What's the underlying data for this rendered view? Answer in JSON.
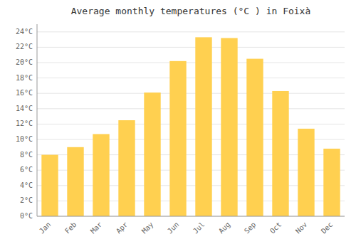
{
  "chart_data": {
    "type": "bar",
    "title": "Average monthly temperatures (°C ) in Foixà",
    "categories": [
      "Jan",
      "Feb",
      "Mar",
      "Apr",
      "May",
      "Jun",
      "Jul",
      "Aug",
      "Sep",
      "Oct",
      "Nov",
      "Dec"
    ],
    "values": [
      8.0,
      9.0,
      10.7,
      12.5,
      16.1,
      20.2,
      23.3,
      23.2,
      20.5,
      16.3,
      11.4,
      8.8
    ],
    "color": "#FFD050",
    "ylim": [
      0,
      25
    ],
    "yticks": [
      {
        "value": 0,
        "label": "0°C"
      },
      {
        "value": 2,
        "label": "2°C"
      },
      {
        "value": 4,
        "label": "4°C"
      },
      {
        "value": 6,
        "label": "6°C"
      },
      {
        "value": 8,
        "label": "8°C"
      },
      {
        "value": 10,
        "label": "10°C"
      },
      {
        "value": 12,
        "label": "12°C"
      },
      {
        "value": 14,
        "label": "14°C"
      },
      {
        "value": 16,
        "label": "16°C"
      },
      {
        "value": 18,
        "label": "18°C"
      },
      {
        "value": 20,
        "label": "20°C"
      },
      {
        "value": 22,
        "label": "22°C"
      },
      {
        "value": 24,
        "label": "24°C"
      }
    ],
    "grid": true
  }
}
